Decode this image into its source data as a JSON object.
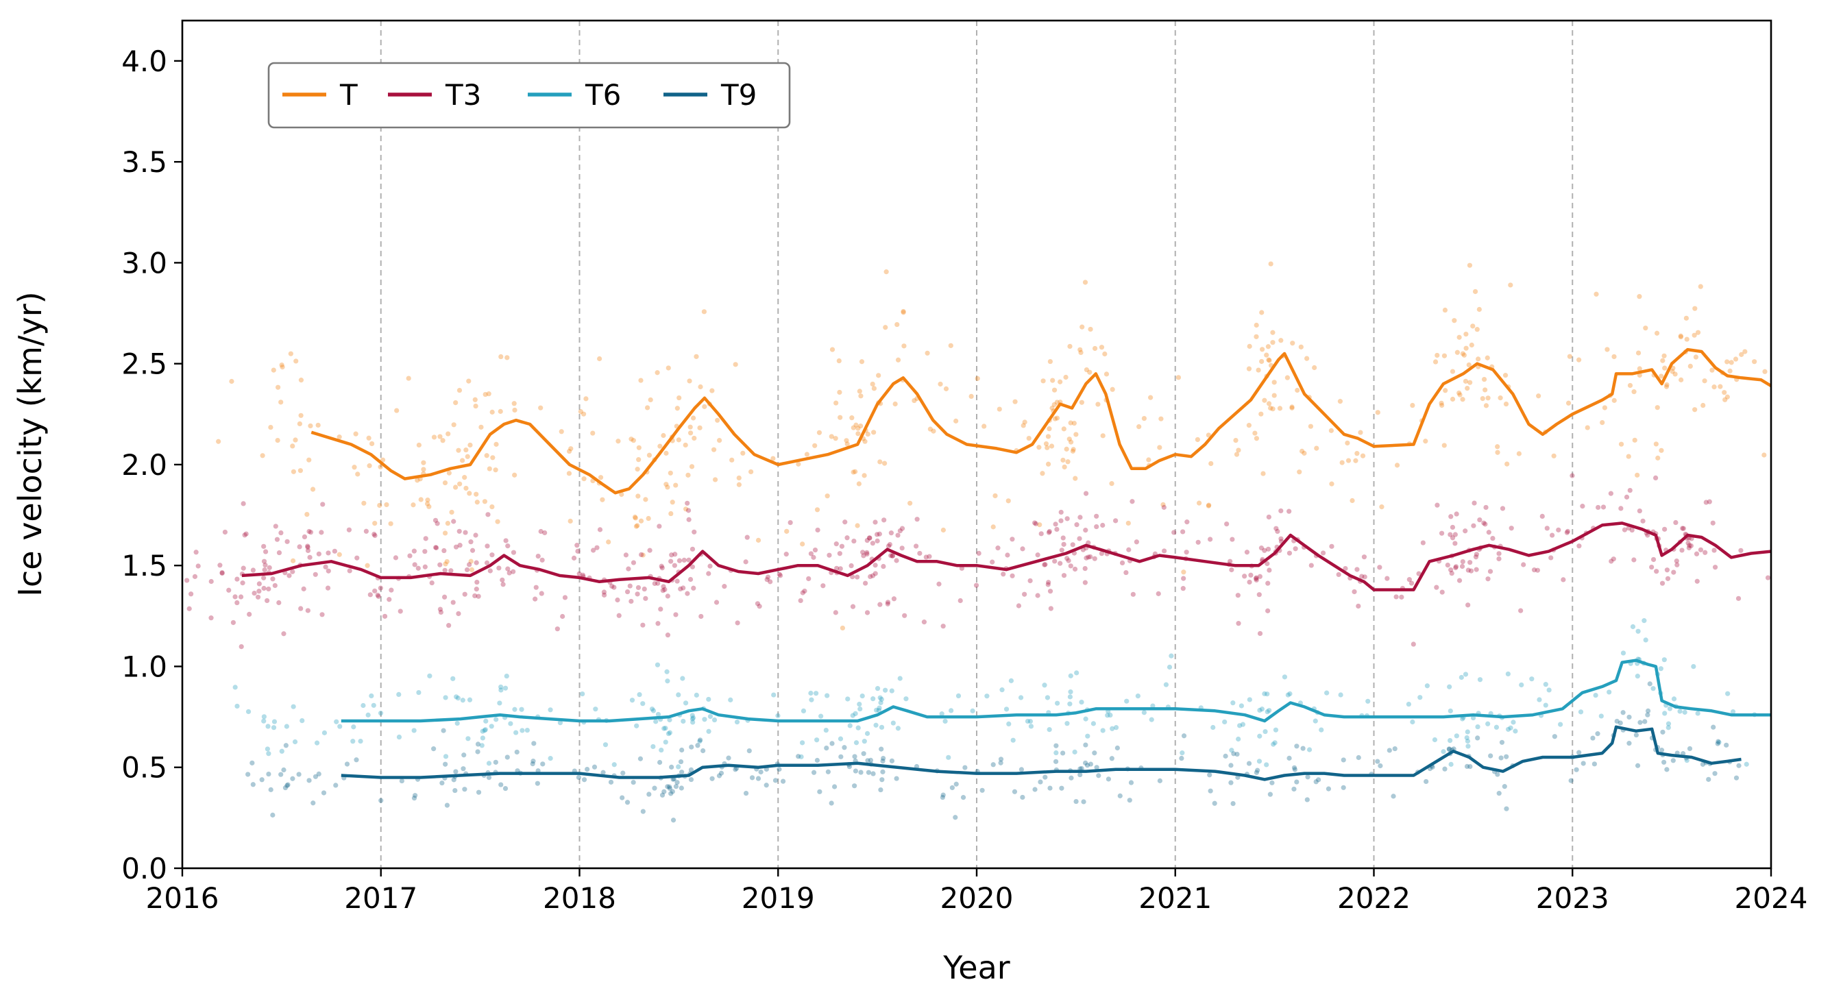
{
  "chart_data": {
    "type": "line",
    "title": "",
    "xlabel": "Year",
    "ylabel": "Ice velocity (km/yr)",
    "xlim": [
      2016,
      2024
    ],
    "ylim": [
      0.0,
      4.2
    ],
    "x_ticks": [
      2016,
      2017,
      2018,
      2019,
      2020,
      2021,
      2022,
      2023,
      2024
    ],
    "x_tick_labels": [
      "2016",
      "2017",
      "2018",
      "2019",
      "2020",
      "2021",
      "2022",
      "2023",
      "2024"
    ],
    "y_ticks": [
      0.0,
      0.5,
      1.0,
      1.5,
      2.0,
      2.5,
      3.0,
      3.5,
      4.0
    ],
    "y_tick_labels": [
      "0.0",
      "0.5",
      "1.0",
      "1.5",
      "2.0",
      "2.5",
      "3.0",
      "3.5",
      "4.0"
    ],
    "grid": "vertical dashed at each year",
    "legend_position": "upper-left",
    "series": [
      {
        "name": "T",
        "color": "#f28111",
        "smoothed": [
          [
            2016.65,
            2.16
          ],
          [
            2016.75,
            2.13
          ],
          [
            2016.85,
            2.1
          ],
          [
            2016.95,
            2.05
          ],
          [
            2017.05,
            1.97
          ],
          [
            2017.12,
            1.93
          ],
          [
            2017.25,
            1.95
          ],
          [
            2017.35,
            1.98
          ],
          [
            2017.45,
            2.0
          ],
          [
            2017.55,
            2.15
          ],
          [
            2017.62,
            2.2
          ],
          [
            2017.68,
            2.22
          ],
          [
            2017.75,
            2.2
          ],
          [
            2017.85,
            2.1
          ],
          [
            2017.95,
            2.0
          ],
          [
            2018.05,
            1.95
          ],
          [
            2018.12,
            1.9
          ],
          [
            2018.18,
            1.86
          ],
          [
            2018.25,
            1.88
          ],
          [
            2018.32,
            1.95
          ],
          [
            2018.4,
            2.05
          ],
          [
            2018.5,
            2.18
          ],
          [
            2018.58,
            2.28
          ],
          [
            2018.63,
            2.33
          ],
          [
            2018.7,
            2.25
          ],
          [
            2018.78,
            2.15
          ],
          [
            2018.88,
            2.05
          ],
          [
            2019.0,
            2.0
          ],
          [
            2019.1,
            2.02
          ],
          [
            2019.25,
            2.05
          ],
          [
            2019.4,
            2.1
          ],
          [
            2019.5,
            2.3
          ],
          [
            2019.58,
            2.4
          ],
          [
            2019.63,
            2.43
          ],
          [
            2019.7,
            2.35
          ],
          [
            2019.78,
            2.22
          ],
          [
            2019.85,
            2.15
          ],
          [
            2019.95,
            2.1
          ],
          [
            2020.1,
            2.08
          ],
          [
            2020.2,
            2.06
          ],
          [
            2020.28,
            2.1
          ],
          [
            2020.35,
            2.2
          ],
          [
            2020.42,
            2.3
          ],
          [
            2020.48,
            2.28
          ],
          [
            2020.55,
            2.4
          ],
          [
            2020.6,
            2.45
          ],
          [
            2020.65,
            2.35
          ],
          [
            2020.72,
            2.1
          ],
          [
            2020.78,
            1.98
          ],
          [
            2020.85,
            1.98
          ],
          [
            2020.92,
            2.02
          ],
          [
            2021.0,
            2.05
          ],
          [
            2021.08,
            2.04
          ],
          [
            2021.15,
            2.1
          ],
          [
            2021.22,
            2.18
          ],
          [
            2021.3,
            2.25
          ],
          [
            2021.38,
            2.32
          ],
          [
            2021.45,
            2.42
          ],
          [
            2021.52,
            2.52
          ],
          [
            2021.55,
            2.55
          ],
          [
            2021.6,
            2.45
          ],
          [
            2021.65,
            2.35
          ],
          [
            2021.72,
            2.28
          ],
          [
            2021.78,
            2.22
          ],
          [
            2021.85,
            2.15
          ],
          [
            2021.92,
            2.13
          ],
          [
            2022.0,
            2.09
          ],
          [
            2022.2,
            2.1
          ],
          [
            2022.28,
            2.3
          ],
          [
            2022.35,
            2.4
          ],
          [
            2022.45,
            2.45
          ],
          [
            2022.52,
            2.5
          ],
          [
            2022.6,
            2.47
          ],
          [
            2022.7,
            2.35
          ],
          [
            2022.78,
            2.2
          ],
          [
            2022.85,
            2.15
          ],
          [
            2022.92,
            2.2
          ],
          [
            2023.0,
            2.25
          ],
          [
            2023.15,
            2.32
          ],
          [
            2023.2,
            2.35
          ],
          [
            2023.22,
            2.45
          ],
          [
            2023.3,
            2.45
          ],
          [
            2023.4,
            2.47
          ],
          [
            2023.45,
            2.4
          ],
          [
            2023.5,
            2.5
          ],
          [
            2023.58,
            2.57
          ],
          [
            2023.65,
            2.56
          ],
          [
            2023.72,
            2.48
          ],
          [
            2023.78,
            2.44
          ],
          [
            2023.85,
            2.43
          ],
          [
            2023.95,
            2.42
          ],
          [
            2024.0,
            2.39
          ]
        ]
      },
      {
        "name": "T3",
        "color": "#a8103e",
        "smoothed": [
          [
            2016.3,
            1.45
          ],
          [
            2016.45,
            1.46
          ],
          [
            2016.6,
            1.5
          ],
          [
            2016.75,
            1.52
          ],
          [
            2016.9,
            1.48
          ],
          [
            2017.0,
            1.44
          ],
          [
            2017.15,
            1.44
          ],
          [
            2017.3,
            1.46
          ],
          [
            2017.45,
            1.45
          ],
          [
            2017.55,
            1.5
          ],
          [
            2017.62,
            1.55
          ],
          [
            2017.7,
            1.5
          ],
          [
            2017.8,
            1.48
          ],
          [
            2017.9,
            1.45
          ],
          [
            2018.0,
            1.44
          ],
          [
            2018.1,
            1.42
          ],
          [
            2018.2,
            1.43
          ],
          [
            2018.35,
            1.44
          ],
          [
            2018.45,
            1.42
          ],
          [
            2018.55,
            1.5
          ],
          [
            2018.62,
            1.57
          ],
          [
            2018.7,
            1.5
          ],
          [
            2018.8,
            1.47
          ],
          [
            2018.9,
            1.46
          ],
          [
            2019.0,
            1.48
          ],
          [
            2019.1,
            1.5
          ],
          [
            2019.2,
            1.5
          ],
          [
            2019.35,
            1.45
          ],
          [
            2019.45,
            1.5
          ],
          [
            2019.55,
            1.58
          ],
          [
            2019.62,
            1.55
          ],
          [
            2019.7,
            1.52
          ],
          [
            2019.8,
            1.52
          ],
          [
            2019.9,
            1.5
          ],
          [
            2020.0,
            1.5
          ],
          [
            2020.15,
            1.48
          ],
          [
            2020.3,
            1.52
          ],
          [
            2020.45,
            1.56
          ],
          [
            2020.55,
            1.6
          ],
          [
            2020.62,
            1.58
          ],
          [
            2020.72,
            1.55
          ],
          [
            2020.82,
            1.52
          ],
          [
            2020.92,
            1.55
          ],
          [
            2021.0,
            1.54
          ],
          [
            2021.15,
            1.52
          ],
          [
            2021.3,
            1.5
          ],
          [
            2021.42,
            1.5
          ],
          [
            2021.5,
            1.56
          ],
          [
            2021.58,
            1.65
          ],
          [
            2021.65,
            1.6
          ],
          [
            2021.72,
            1.55
          ],
          [
            2021.8,
            1.5
          ],
          [
            2021.88,
            1.45
          ],
          [
            2021.95,
            1.42
          ],
          [
            2022.0,
            1.38
          ],
          [
            2022.2,
            1.38
          ],
          [
            2022.28,
            1.52
          ],
          [
            2022.4,
            1.55
          ],
          [
            2022.5,
            1.58
          ],
          [
            2022.58,
            1.6
          ],
          [
            2022.68,
            1.58
          ],
          [
            2022.78,
            1.55
          ],
          [
            2022.88,
            1.57
          ],
          [
            2023.0,
            1.62
          ],
          [
            2023.15,
            1.7
          ],
          [
            2023.25,
            1.71
          ],
          [
            2023.35,
            1.68
          ],
          [
            2023.42,
            1.65
          ],
          [
            2023.45,
            1.55
          ],
          [
            2023.5,
            1.58
          ],
          [
            2023.58,
            1.65
          ],
          [
            2023.65,
            1.64
          ],
          [
            2023.72,
            1.6
          ],
          [
            2023.8,
            1.54
          ],
          [
            2023.9,
            1.56
          ],
          [
            2024.0,
            1.57
          ]
        ]
      },
      {
        "name": "T6",
        "color": "#259fbd",
        "smoothed": [
          [
            2016.8,
            0.73
          ],
          [
            2017.0,
            0.73
          ],
          [
            2017.2,
            0.73
          ],
          [
            2017.4,
            0.74
          ],
          [
            2017.5,
            0.75
          ],
          [
            2017.6,
            0.76
          ],
          [
            2017.7,
            0.75
          ],
          [
            2017.85,
            0.74
          ],
          [
            2018.0,
            0.73
          ],
          [
            2018.15,
            0.73
          ],
          [
            2018.3,
            0.74
          ],
          [
            2018.45,
            0.75
          ],
          [
            2018.55,
            0.78
          ],
          [
            2018.62,
            0.79
          ],
          [
            2018.7,
            0.76
          ],
          [
            2018.85,
            0.74
          ],
          [
            2019.0,
            0.73
          ],
          [
            2019.2,
            0.73
          ],
          [
            2019.4,
            0.73
          ],
          [
            2019.5,
            0.76
          ],
          [
            2019.58,
            0.8
          ],
          [
            2019.65,
            0.78
          ],
          [
            2019.75,
            0.75
          ],
          [
            2019.9,
            0.75
          ],
          [
            2020.0,
            0.75
          ],
          [
            2020.2,
            0.76
          ],
          [
            2020.4,
            0.76
          ],
          [
            2020.5,
            0.77
          ],
          [
            2020.6,
            0.79
          ],
          [
            2020.7,
            0.79
          ],
          [
            2020.85,
            0.79
          ],
          [
            2021.0,
            0.79
          ],
          [
            2021.2,
            0.78
          ],
          [
            2021.35,
            0.76
          ],
          [
            2021.45,
            0.73
          ],
          [
            2021.52,
            0.78
          ],
          [
            2021.58,
            0.82
          ],
          [
            2021.65,
            0.8
          ],
          [
            2021.75,
            0.76
          ],
          [
            2021.85,
            0.75
          ],
          [
            2022.0,
            0.75
          ],
          [
            2022.2,
            0.75
          ],
          [
            2022.35,
            0.75
          ],
          [
            2022.5,
            0.76
          ],
          [
            2022.65,
            0.75
          ],
          [
            2022.8,
            0.76
          ],
          [
            2022.95,
            0.79
          ],
          [
            2023.05,
            0.87
          ],
          [
            2023.15,
            0.9
          ],
          [
            2023.22,
            0.93
          ],
          [
            2023.25,
            1.02
          ],
          [
            2023.32,
            1.03
          ],
          [
            2023.38,
            1.01
          ],
          [
            2023.42,
            1.0
          ],
          [
            2023.45,
            0.83
          ],
          [
            2023.52,
            0.8
          ],
          [
            2023.6,
            0.79
          ],
          [
            2023.7,
            0.78
          ],
          [
            2023.8,
            0.76
          ],
          [
            2023.9,
            0.76
          ],
          [
            2024.0,
            0.76
          ]
        ]
      },
      {
        "name": "T9",
        "color": "#116389",
        "smoothed": [
          [
            2016.8,
            0.46
          ],
          [
            2017.0,
            0.45
          ],
          [
            2017.2,
            0.45
          ],
          [
            2017.4,
            0.46
          ],
          [
            2017.6,
            0.47
          ],
          [
            2017.8,
            0.47
          ],
          [
            2018.0,
            0.47
          ],
          [
            2018.2,
            0.45
          ],
          [
            2018.4,
            0.45
          ],
          [
            2018.55,
            0.46
          ],
          [
            2018.62,
            0.5
          ],
          [
            2018.75,
            0.51
          ],
          [
            2018.9,
            0.5
          ],
          [
            2019.0,
            0.51
          ],
          [
            2019.2,
            0.51
          ],
          [
            2019.4,
            0.52
          ],
          [
            2019.6,
            0.5
          ],
          [
            2019.8,
            0.48
          ],
          [
            2020.0,
            0.47
          ],
          [
            2020.2,
            0.47
          ],
          [
            2020.4,
            0.48
          ],
          [
            2020.55,
            0.48
          ],
          [
            2020.7,
            0.49
          ],
          [
            2020.85,
            0.49
          ],
          [
            2021.0,
            0.49
          ],
          [
            2021.2,
            0.48
          ],
          [
            2021.35,
            0.46
          ],
          [
            2021.45,
            0.44
          ],
          [
            2021.55,
            0.46
          ],
          [
            2021.65,
            0.47
          ],
          [
            2021.75,
            0.47
          ],
          [
            2021.85,
            0.46
          ],
          [
            2022.0,
            0.46
          ],
          [
            2022.2,
            0.46
          ],
          [
            2022.3,
            0.52
          ],
          [
            2022.4,
            0.58
          ],
          [
            2022.48,
            0.55
          ],
          [
            2022.55,
            0.5
          ],
          [
            2022.65,
            0.48
          ],
          [
            2022.75,
            0.53
          ],
          [
            2022.85,
            0.55
          ],
          [
            2023.0,
            0.55
          ],
          [
            2023.15,
            0.57
          ],
          [
            2023.2,
            0.62
          ],
          [
            2023.22,
            0.7
          ],
          [
            2023.32,
            0.68
          ],
          [
            2023.4,
            0.69
          ],
          [
            2023.43,
            0.57
          ],
          [
            2023.5,
            0.56
          ],
          [
            2023.6,
            0.55
          ],
          [
            2023.7,
            0.52
          ],
          [
            2023.78,
            0.53
          ],
          [
            2023.85,
            0.54
          ]
        ]
      }
    ]
  }
}
